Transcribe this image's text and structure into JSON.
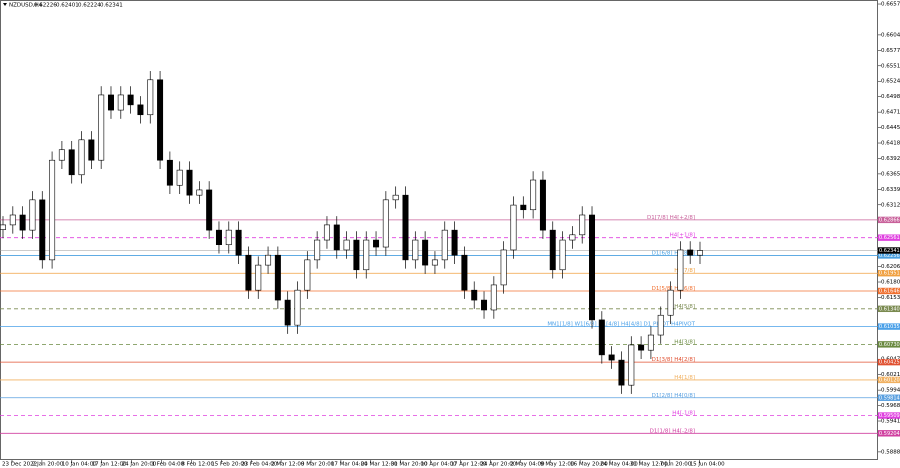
{
  "chart_data": {
    "type": "candlestick",
    "title": "NZDUSD,H4",
    "header_values": [
      0.62226,
      0.62401,
      0.62224,
      0.62341
    ],
    "ylim": [
      0.58746,
      0.66639
    ],
    "yticks": [
      {
        "value": 0.6657,
        "label": "0.66570"
      },
      {
        "value": 0.6604,
        "label": "0.66040"
      },
      0.65775,
      {
        "value": 0.6551,
        "label": "0.65510"
      },
      0.65245,
      {
        "value": 0.6498,
        "label": "0.64980"
      },
      0.64715,
      {
        "value": 0.6445,
        "label": "0.64450"
      },
      0.64185,
      {
        "value": 0.6392,
        "label": "0.63920"
      },
      0.63655,
      {
        "value": 0.6339,
        "label": "0.63390"
      },
      0.63125,
      0.62065,
      {
        "value": 0.618,
        "label": "0.61800"
      },
      0.61535,
      0.60475,
      {
        "value": 0.6021,
        "label": "0.60210"
      },
      0.59945,
      {
        "value": 0.5968,
        "label": "0.59680"
      },
      0.59415,
      0.58885
    ],
    "x_labels": [
      "23 Dec 2022",
      "2 Jan 20:00",
      "10 Jan 04:00",
      "17 Jan 12:00",
      "24 Jan 20:00",
      "1 Feb 04:00",
      "8 Feb 12:00",
      "15 Feb 20:00",
      "23 Feb 04:00",
      "2 Mar 12:00",
      "9 Mar 20:00",
      "17 Mar 04:00",
      "24 Mar 12:00",
      "31 Mar 20:00",
      "10 Apr 04:00",
      "17 Apr 12:00",
      "24 Apr 20:00",
      "2 May 04:00",
      "9 May 12:00",
      "16 May 20:00",
      "24 May 04:00",
      "31 May 12:00",
      "7 Jun 20:00",
      "15 Jun 04:00"
    ],
    "open": [
      0.627,
      0.6278,
      0.6295,
      0.6269,
      0.6321,
      0.6218,
      0.6389,
      0.6407,
      0.6364,
      0.6424,
      0.6389,
      0.6501,
      0.6475,
      0.6501,
      0.6484,
      0.6467,
      0.6527,
      0.6389,
      0.6346,
      0.6372,
      0.6329,
      0.6338,
      0.6269,
      0.6244,
      0.6269,
      0.6226,
      0.6166,
      0.6209,
      0.6226,
      0.6149,
      0.6106,
      0.6166,
      0.6218,
      0.6252,
      0.6278,
      0.6235,
      0.6252,
      0.6201,
      0.6252,
      0.624,
      0.6321,
      0.6329,
      0.6218,
      0.6252,
      0.6209,
      0.6218,
      0.6269,
      0.6226,
      0.6166,
      0.6149,
      0.6132,
      0.6175,
      0.6235,
      0.6312,
      0.6304,
      0.6355,
      0.6269,
      0.6201,
      0.6252,
      0.6261,
      0.6295,
      0.6115,
      0.6055,
      0.6046,
      0.6003,
      0.6072,
      0.6063,
      0.6089,
      0.6123,
      0.6166,
      0.6235,
      0.6226
    ],
    "high": [
      0.6293,
      0.631,
      0.631,
      0.6336,
      0.6336,
      0.6404,
      0.6422,
      0.6422,
      0.6439,
      0.6439,
      0.6516,
      0.6516,
      0.6516,
      0.6516,
      0.6499,
      0.6542,
      0.6542,
      0.6404,
      0.6387,
      0.6387,
      0.6353,
      0.6353,
      0.6284,
      0.6284,
      0.6284,
      0.6241,
      0.6224,
      0.6241,
      0.6241,
      0.6164,
      0.6181,
      0.6233,
      0.6267,
      0.6293,
      0.6293,
      0.6267,
      0.6267,
      0.6267,
      0.6267,
      0.6336,
      0.6344,
      0.6344,
      0.6267,
      0.6267,
      0.6233,
      0.6284,
      0.6284,
      0.6241,
      0.6181,
      0.6164,
      0.619,
      0.625,
      0.6327,
      0.6327,
      0.637,
      0.637,
      0.6284,
      0.6267,
      0.6276,
      0.631,
      0.631,
      0.613,
      0.607,
      0.6061,
      0.6087,
      0.6087,
      0.6104,
      0.6138,
      0.6181,
      0.625,
      0.625,
      0.6249
    ],
    "low": [
      0.6255,
      0.6263,
      0.6254,
      0.6254,
      0.6203,
      0.6203,
      0.6374,
      0.6349,
      0.6349,
      0.6374,
      0.6374,
      0.646,
      0.646,
      0.6469,
      0.6452,
      0.6452,
      0.6374,
      0.6331,
      0.6331,
      0.6314,
      0.6314,
      0.6254,
      0.6229,
      0.6229,
      0.6211,
      0.6151,
      0.6151,
      0.6194,
      0.6134,
      0.6091,
      0.6091,
      0.6151,
      0.6203,
      0.6237,
      0.622,
      0.622,
      0.6186,
      0.6186,
      0.6225,
      0.6225,
      0.6306,
      0.6203,
      0.6203,
      0.6194,
      0.6194,
      0.6203,
      0.6211,
      0.6151,
      0.6134,
      0.6117,
      0.6117,
      0.616,
      0.622,
      0.6289,
      0.6289,
      0.6254,
      0.6186,
      0.6186,
      0.6237,
      0.6246,
      0.61,
      0.604,
      0.6031,
      0.5988,
      0.5988,
      0.6048,
      0.6048,
      0.6074,
      0.6108,
      0.6151,
      0.6211,
      0.6211
    ],
    "close": [
      0.6278,
      0.6295,
      0.6269,
      0.6321,
      0.6218,
      0.6389,
      0.6407,
      0.6364,
      0.6424,
      0.6389,
      0.6501,
      0.6475,
      0.6501,
      0.6484,
      0.6467,
      0.6527,
      0.6389,
      0.6346,
      0.6372,
      0.6329,
      0.6338,
      0.6269,
      0.6244,
      0.6269,
      0.6226,
      0.6166,
      0.6209,
      0.6226,
      0.6149,
      0.6106,
      0.6166,
      0.6218,
      0.6252,
      0.6278,
      0.6235,
      0.6252,
      0.6201,
      0.6252,
      0.624,
      0.6321,
      0.6329,
      0.6218,
      0.6252,
      0.6209,
      0.6218,
      0.6269,
      0.6226,
      0.6166,
      0.6149,
      0.6132,
      0.6175,
      0.6235,
      0.6312,
      0.6304,
      0.6355,
      0.6269,
      0.6201,
      0.6252,
      0.6261,
      0.6295,
      0.6115,
      0.6055,
      0.6046,
      0.6003,
      0.6072,
      0.6063,
      0.6089,
      0.6123,
      0.6166,
      0.6235,
      0.6226,
      0.6234
    ],
    "current_price": 0.62341,
    "levels": [
      {
        "label": "D1[7/8] H4[+2/8]",
        "value": 0.62866,
        "color": "#c8609a",
        "dashed": false
      },
      {
        "label": "H4[+1/8]",
        "value": 0.62561,
        "color": "#e040e0",
        "dashed": true
      },
      {
        "label": "D1[6/8] H4[8/8]",
        "value": 0.62256,
        "color": "#4aa0e0",
        "dashed": false
      },
      {
        "label": "H4[7/8]",
        "value": 0.61951,
        "color": "#f0a040",
        "dashed": false
      },
      {
        "label": "D1[5/8] H4[6/8]",
        "value": 0.61646,
        "color": "#f07030",
        "dashed": false
      },
      {
        "label": "H4[5/8]",
        "value": 0.6134,
        "value_label": "0.61340",
        "color": "#7a8a50",
        "dashed": true
      },
      {
        "label": "MN1[1/8] W1[6/8] D1[4/8] H4[4/8] D1 PIVOT H4PIVOT",
        "value": 0.61035,
        "color": "#4aa0e8",
        "dashed": false
      },
      {
        "label": "H4[3/8]",
        "value": 0.6073,
        "value_label": "0.60730",
        "color": "#6a8a40",
        "dashed": true
      },
      {
        "label": "D1[3/8] H4[2/8]",
        "value": 0.60425,
        "color": "#e05030",
        "dashed": false
      },
      {
        "label": "H4[1/8]",
        "value": 0.6012,
        "value_label": "0.60120",
        "color": "#f0b060",
        "dashed": false
      },
      {
        "label": "D1[2/8] H4[0/8]",
        "value": 0.59814,
        "color": "#5aa0e0",
        "dashed": false
      },
      {
        "label": "H4[-1/8]",
        "value": 0.59509,
        "color": "#e040e0",
        "dashed": true
      },
      {
        "label": "D1[1/8] H4[-2/8]",
        "value": 0.59204,
        "color": "#d040a0",
        "dashed": false
      }
    ]
  }
}
